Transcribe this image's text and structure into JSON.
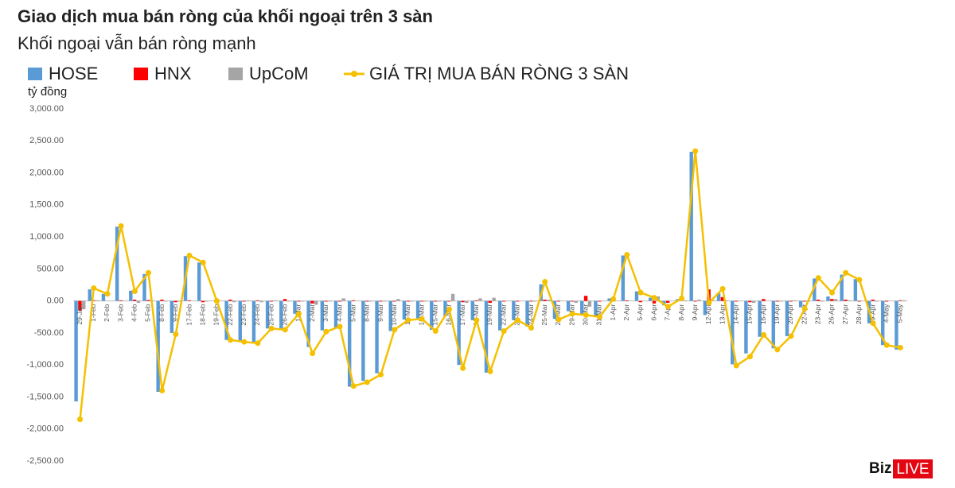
{
  "chart_data": {
    "type": "combo",
    "title": "Giao dịch mua bán ròng của khối ngoại trên 3 sàn",
    "subtitle": "Khối ngoại vẫn bán ròng mạnh",
    "y_label": "tỷ đồng",
    "logo": [
      "Biz",
      "LIVE"
    ],
    "categories": [
      "29-Jan",
      "1-Feb",
      "2-Feb",
      "3-Feb",
      "4-Feb",
      "5-Feb",
      "8-Feb",
      "9-Feb",
      "17-Feb",
      "18-Feb",
      "19-Feb",
      "22-Feb",
      "23-Feb",
      "24-Feb",
      "25-Feb",
      "26-Feb",
      "1-Mar",
      "2-Mar",
      "3-Mar",
      "4-Mar",
      "5-Mar",
      "8-Mar",
      "9-Mar",
      "10-Mar",
      "11-Mar",
      "12-Mar",
      "15-Mar",
      "16-Mar",
      "17-Mar",
      "18-Mar",
      "19-Mar",
      "22-Mar",
      "23-Mar",
      "24-Mar",
      "25-Mar",
      "26-Mar",
      "29-Mar",
      "30-Mar",
      "31-Mar",
      "1-Apr",
      "2-Apr",
      "5-Apr",
      "6-Apr",
      "7-Apr",
      "8-Apr",
      "9-Apr",
      "12-Apr",
      "13-Apr",
      "14-Apr",
      "15-Apr",
      "16-Apr",
      "19-Apr",
      "20-Apr",
      "22-Apr",
      "23-Apr",
      "26-Apr",
      "27-Apr",
      "28-Apr",
      "29-Apr",
      "4-May",
      "5-May"
    ],
    "series": [
      {
        "name": "HOSE",
        "type": "bar",
        "color": "#5b9bd5",
        "values": [
          -1570,
          180,
          110,
          1160,
          160,
          420,
          -1420,
          -500,
          700,
          600,
          0,
          -610,
          -640,
          -650,
          -430,
          -450,
          -200,
          -720,
          -460,
          -430,
          -1340,
          -1250,
          -1130,
          -470,
          -290,
          -270,
          -450,
          -240,
          -1000,
          -300,
          -1120,
          -460,
          -300,
          -400,
          260,
          -280,
          -160,
          -210,
          -240,
          40,
          710,
          150,
          50,
          -70,
          30,
          2330,
          -220,
          120,
          -990,
          -820,
          -560,
          -740,
          -550,
          -100,
          350,
          70,
          410,
          340,
          -350,
          -690,
          -760
        ]
      },
      {
        "name": "HNX",
        "type": "bar",
        "color": "#ff0000",
        "values": [
          -150,
          10,
          0,
          10,
          20,
          15,
          20,
          -20,
          10,
          -20,
          0,
          20,
          -10,
          10,
          -10,
          30,
          -10,
          -40,
          -10,
          -10,
          10,
          -10,
          -10,
          -10,
          -10,
          -10,
          -10,
          -10,
          -20,
          10,
          -30,
          -10,
          -10,
          -10,
          20,
          -10,
          -10,
          80,
          -10,
          -10,
          10,
          -20,
          -40,
          -30,
          0,
          -10,
          180,
          60,
          -10,
          -20,
          30,
          -10,
          -10,
          -10,
          20,
          30,
          20,
          -10,
          20,
          -10,
          10
        ]
      },
      {
        "name": "UpCoM",
        "type": "bar",
        "color": "#a5a5a5",
        "values": [
          -130,
          10,
          0,
          0,
          -30,
          5,
          -10,
          -10,
          0,
          -10,
          0,
          -20,
          10,
          -20,
          10,
          -10,
          -10,
          -60,
          -10,
          40,
          0,
          -10,
          -10,
          30,
          -10,
          -10,
          -10,
          110,
          -30,
          40,
          50,
          0,
          0,
          -10,
          20,
          0,
          -30,
          -90,
          0,
          0,
          0,
          0,
          70,
          0,
          10,
          20,
          10,
          10,
          0,
          -30,
          0,
          -10,
          10,
          -10,
          -10,
          30,
          10,
          0,
          -10,
          0,
          10
        ]
      },
      {
        "name": "GIÁ TRỊ MUA BÁN RÒNG 3 SÀN",
        "type": "line",
        "color": "#f5c000",
        "values": [
          -1850,
          200,
          110,
          1170,
          150,
          440,
          -1400,
          -520,
          710,
          600,
          0,
          -610,
          -640,
          -660,
          -430,
          -450,
          -200,
          -820,
          -480,
          -400,
          -1330,
          -1270,
          -1150,
          -450,
          -300,
          -280,
          -470,
          -130,
          -1050,
          -300,
          -1100,
          -470,
          -300,
          -420,
          300,
          -290,
          -200,
          -220,
          -250,
          30,
          720,
          130,
          50,
          -90,
          40,
          2340,
          -30,
          190,
          -1010,
          -870,
          -530,
          -760,
          -550,
          -120,
          360,
          130,
          440,
          330,
          -350,
          -690,
          -730
        ]
      }
    ],
    "ylim": [
      -2500,
      3000
    ],
    "yticks": [
      {
        "value": -2500,
        "label": "-2,500.00"
      },
      {
        "value": -2000,
        "label": "-2,000.00"
      },
      {
        "value": -1500,
        "label": "-1,500.00"
      },
      {
        "value": -1000,
        "label": "-1,000.00"
      },
      {
        "value": -500,
        "label": "-500.00"
      },
      {
        "value": 0,
        "label": "0.00"
      },
      {
        "value": 500,
        "label": "500.00"
      },
      {
        "value": 1000,
        "label": "1,000.00"
      },
      {
        "value": 1500,
        "label": "1,500.00"
      },
      {
        "value": 2000,
        "label": "2,000.00"
      },
      {
        "value": 2500,
        "label": "2,500.00"
      },
      {
        "value": 3000,
        "label": "3,000.00"
      }
    ],
    "grid": false
  }
}
